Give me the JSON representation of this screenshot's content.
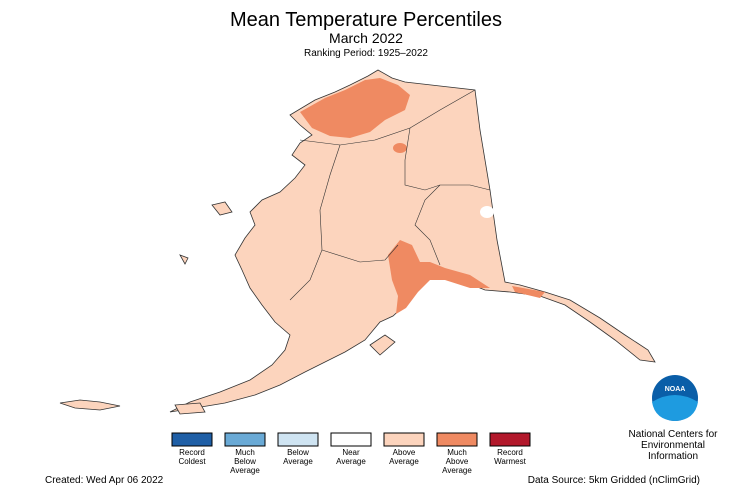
{
  "header": {
    "title": "Mean Temperature Percentiles",
    "subtitle": "March 2022",
    "ranking_period": "Ranking Period: 1925–2022"
  },
  "legend": {
    "items": [
      {
        "lines": [
          "Record",
          "Coldest"
        ],
        "color": "#1f5fa6"
      },
      {
        "lines": [
          "Much",
          "Below",
          "Average"
        ],
        "color": "#6aaad6"
      },
      {
        "lines": [
          "Below",
          "Average"
        ],
        "color": "#cfe4f2"
      },
      {
        "lines": [
          "Near",
          "Average"
        ],
        "color": "#ffffff"
      },
      {
        "lines": [
          "Above",
          "Average"
        ],
        "color": "#fcd4bd"
      },
      {
        "lines": [
          "Much",
          "Above",
          "Average"
        ],
        "color": "#ef8a62"
      },
      {
        "lines": [
          "Record",
          "Warmest"
        ],
        "color": "#b2182b"
      }
    ]
  },
  "logo": {
    "text": "NOAA",
    "agency": [
      "National Centers for",
      "Environmental",
      "Information"
    ]
  },
  "footer": {
    "created": "Created: Wed Apr 06 2022",
    "source": "Data Source: 5km Gridded (nClimGrid)"
  }
}
